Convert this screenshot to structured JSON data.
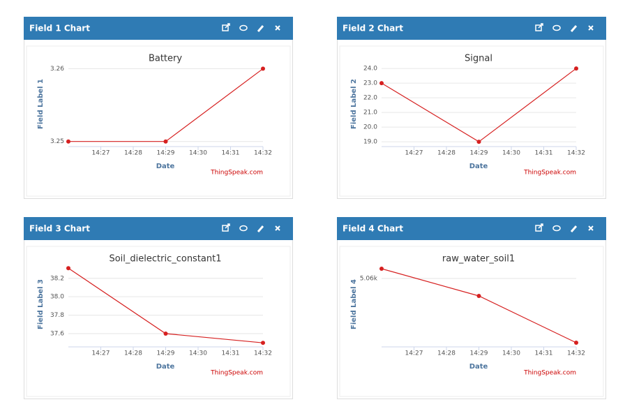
{
  "panels": [
    {
      "title": "Field 1 Chart"
    },
    {
      "title": "Field 2 Chart"
    },
    {
      "title": "Field 3 Chart"
    },
    {
      "title": "Field 4 Chart"
    }
  ],
  "chart_data": [
    {
      "type": "line",
      "title": "Battery",
      "y_label": "Field Label 1",
      "x_label": "Date",
      "credit": "ThingSpeak.com",
      "x": [
        "14:26",
        "14:29",
        "14:32"
      ],
      "values": [
        3.25,
        3.25,
        3.26
      ],
      "color": "#d62020",
      "xlim": [
        "14:26",
        "14:32"
      ],
      "xticks": [
        "14:27",
        "14:28",
        "14:29",
        "14:30",
        "14:31",
        "14:32"
      ],
      "ylim": [
        3.2493,
        3.261
      ],
      "yticks": [
        3.25,
        3.26
      ],
      "grid": true
    },
    {
      "type": "line",
      "title": "Signal",
      "y_label": "Field Label 2",
      "x_label": "Date",
      "credit": "ThingSpeak.com",
      "x": [
        "14:26",
        "14:29",
        "14:32"
      ],
      "values": [
        23,
        19,
        24
      ],
      "color": "#d62020",
      "xlim": [
        "14:26",
        "14:32"
      ],
      "xticks": [
        "14:27",
        "14:28",
        "14:29",
        "14:30",
        "14:31",
        "14:32"
      ],
      "ylim": [
        18.67,
        24.48
      ],
      "yticks": [
        {
          "value": 19,
          "label": "19.0"
        },
        {
          "value": 20,
          "label": "20.0"
        },
        {
          "value": 21,
          "label": "21.0"
        },
        {
          "value": 22,
          "label": "22.0"
        },
        {
          "value": 23,
          "label": "23.0"
        },
        {
          "value": 24,
          "label": "24.0"
        }
      ],
      "grid": true
    },
    {
      "type": "line",
      "title": "Soil_dielectric_constant1",
      "y_label": "Field Label 3",
      "x_label": "Date",
      "credit": "ThingSpeak.com",
      "x": [
        "14:26",
        "14:29",
        "14:32"
      ],
      "values": [
        38.31,
        37.6,
        37.5
      ],
      "color": "#d62020",
      "xlim": [
        "14:26",
        "14:32"
      ],
      "xticks": [
        "14:27",
        "14:28",
        "14:29",
        "14:30",
        "14:31",
        "14:32"
      ],
      "ylim": [
        37.456,
        38.38
      ],
      "yticks": [
        37.6,
        37.8,
        {
          "value": 38,
          "label": "38.0"
        },
        38.2
      ],
      "grid": true
    },
    {
      "type": "line",
      "title": "raw_water_soil1",
      "y_label": "Field Label 4",
      "x_label": "Date",
      "credit": "ThingSpeak.com",
      "x": [
        "14:26",
        "14:29",
        "14:32"
      ],
      "values": [
        5061.4,
        5057.5,
        5050.8
      ],
      "color": "#d62020",
      "xlim": [
        "14:26",
        "14:32"
      ],
      "xticks": [
        "14:27",
        "14:28",
        "14:29",
        "14:30",
        "14:31",
        "14:32"
      ],
      "ylim": [
        5050.2,
        5062.4
      ],
      "yticks": [
        {
          "value": 5060,
          "label": "5.06k"
        }
      ],
      "grid": true
    }
  ]
}
